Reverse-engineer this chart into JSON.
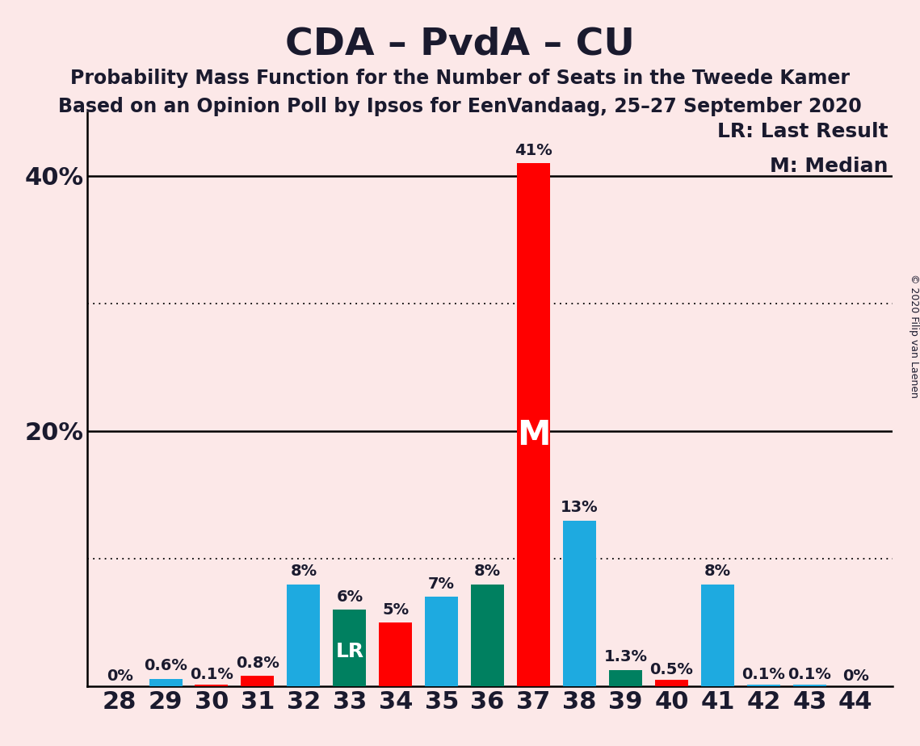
{
  "title": "CDA – PvdA – CU",
  "subtitle1": "Probability Mass Function for the Number of Seats in the Tweede Kamer",
  "subtitle2": "Based on an Opinion Poll by Ipsos for EenVandaag, 25–27 September 2020",
  "copyright": "© 2020 Filip van Laenen",
  "legend_lr": "LR: Last Result",
  "legend_m": "M: Median",
  "background_color": "#fce8e8",
  "seats": [
    28,
    29,
    30,
    31,
    32,
    33,
    34,
    35,
    36,
    37,
    38,
    39,
    40,
    41,
    42,
    43,
    44
  ],
  "values": [
    0.0,
    0.6,
    0.1,
    0.8,
    8.0,
    6.0,
    5.0,
    7.0,
    8.0,
    41.0,
    13.0,
    1.3,
    0.5,
    8.0,
    0.1,
    0.1,
    0.0
  ],
  "colors": [
    "#FF0000",
    "#1EAAE0",
    "#FF0000",
    "#FF0000",
    "#1EAAE0",
    "#008060",
    "#FF0000",
    "#1EAAE0",
    "#008060",
    "#FF0000",
    "#1EAAE0",
    "#008060",
    "#FF0000",
    "#1EAAE0",
    "#1EAAE0",
    "#1EAAE0",
    "#FF0000"
  ],
  "labels": [
    "0%",
    "0.6%",
    "0.1%",
    "0.8%",
    "8%",
    "6%",
    "5%",
    "7%",
    "8%",
    "41%",
    "13%",
    "1.3%",
    "0.5%",
    "8%",
    "0.1%",
    "0.1%",
    "0%"
  ],
  "median_seat": 37,
  "lr_seat": 33,
  "dotted_lines": [
    10.0,
    30.0
  ],
  "solid_lines": [
    20.0,
    40.0
  ],
  "ylim": [
    0,
    45
  ],
  "title_fontsize": 34,
  "subtitle_fontsize": 17,
  "label_fontsize": 14,
  "tick_fontsize": 22,
  "legend_fontsize": 18,
  "copyright_fontsize": 9,
  "bar_width": 0.72
}
